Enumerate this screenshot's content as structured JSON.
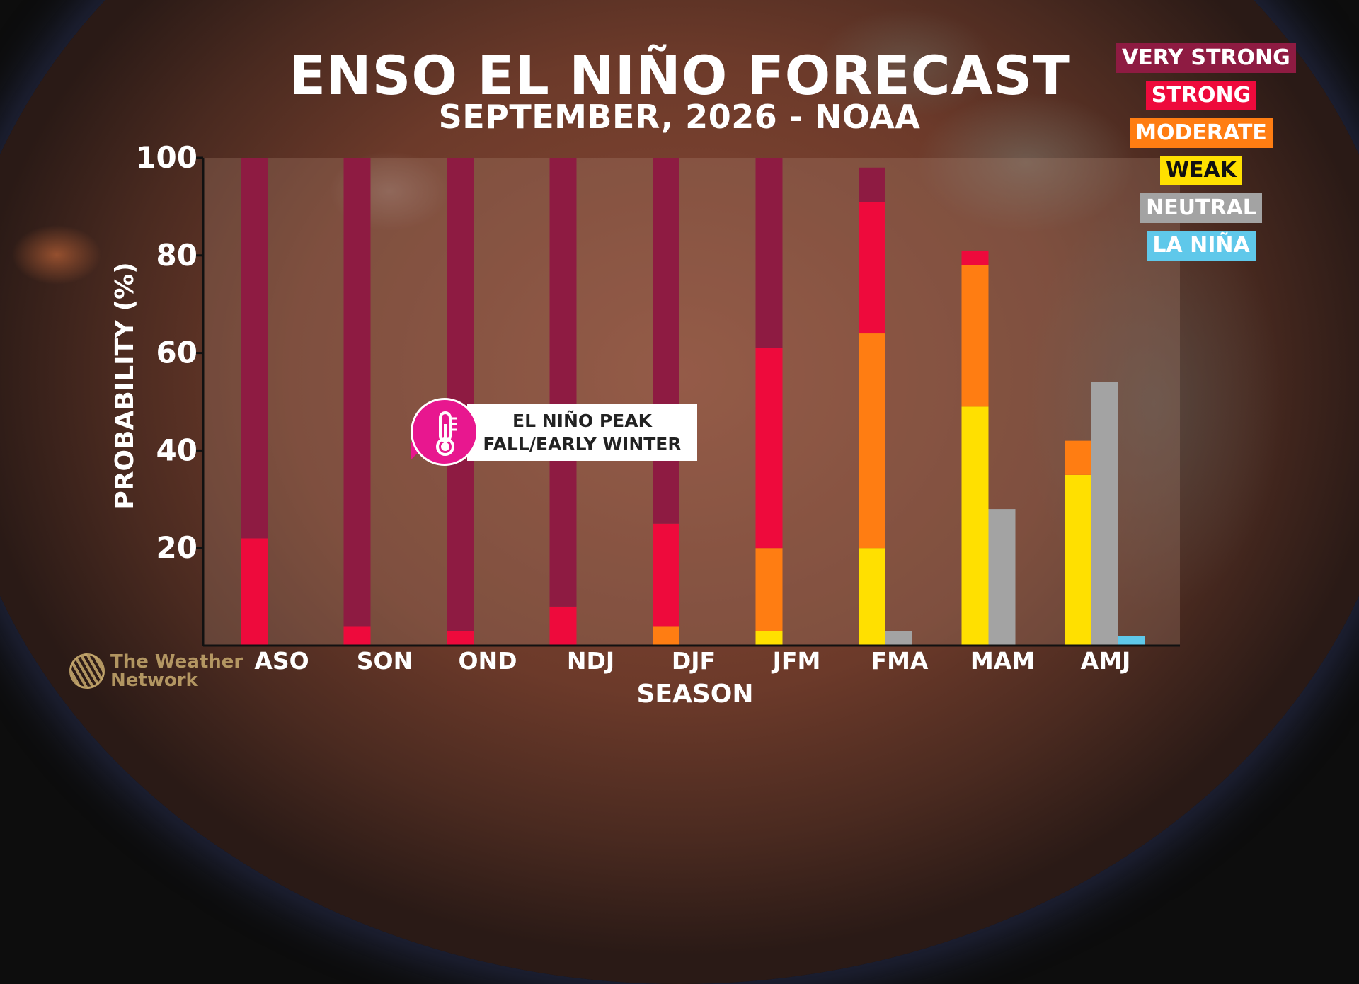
{
  "title": "ENSO EL NIÑO FORECAST",
  "subtitle": "SEPTEMBER, 2026 - NOAA",
  "legend": [
    {
      "label": "VERY STRONG",
      "color": "#8e1b42"
    },
    {
      "label": "STRONG",
      "color": "#ee0a3c"
    },
    {
      "label": "MODERATE",
      "color": "#ff7d12"
    },
    {
      "label": "WEAK",
      "color": "#ffe000"
    },
    {
      "label": "NEUTRAL",
      "color": "#a3a3a3"
    },
    {
      "label": "LA NIÑA",
      "color": "#5fc8ea"
    }
  ],
  "callout": {
    "line1": "EL NIÑO PEAK",
    "line2": "FALL/EARLY WINTER",
    "icon": "thermometer-icon",
    "color": "#e8178f"
  },
  "logo": {
    "line1": "The Weather",
    "line2": "Network",
    "icon": "weather-network-logo-icon"
  },
  "chart_data": {
    "type": "bar",
    "stacking": "stacked El Niño bar plus separate neutral and La Niña bars per season",
    "xlabel": "SEASON",
    "ylabel": "PROBABILITY (%)",
    "ylim": [
      0,
      100
    ],
    "yticks": [
      20,
      40,
      60,
      80,
      100
    ],
    "categories": [
      "ASO",
      "SON",
      "OND",
      "NDJ",
      "DJF",
      "JFM",
      "FMA",
      "MAM",
      "AMJ"
    ],
    "series": [
      {
        "name": "WEAK",
        "color": "#ffe000",
        "values": [
          0,
          0,
          0,
          0,
          0,
          3,
          20,
          49,
          35
        ]
      },
      {
        "name": "MODERATE",
        "color": "#ff7d12",
        "values": [
          0,
          0,
          0,
          0,
          4,
          17,
          44,
          29,
          7
        ]
      },
      {
        "name": "STRONG",
        "color": "#ee0a3c",
        "values": [
          22,
          4,
          3,
          8,
          21,
          41,
          27,
          3,
          0
        ]
      },
      {
        "name": "VERY STRONG",
        "color": "#8e1b42",
        "values": [
          78,
          96,
          97,
          92,
          75,
          39,
          7,
          0,
          0
        ]
      },
      {
        "name": "NEUTRAL",
        "color": "#a3a3a3",
        "values": [
          0,
          0,
          0,
          0,
          0,
          0,
          3,
          28,
          54
        ]
      },
      {
        "name": "LA NIÑA",
        "color": "#5fc8ea",
        "values": [
          0,
          0,
          0,
          0,
          0,
          0,
          0,
          0,
          2
        ]
      }
    ],
    "grid": false,
    "legend_position": "top-right"
  }
}
